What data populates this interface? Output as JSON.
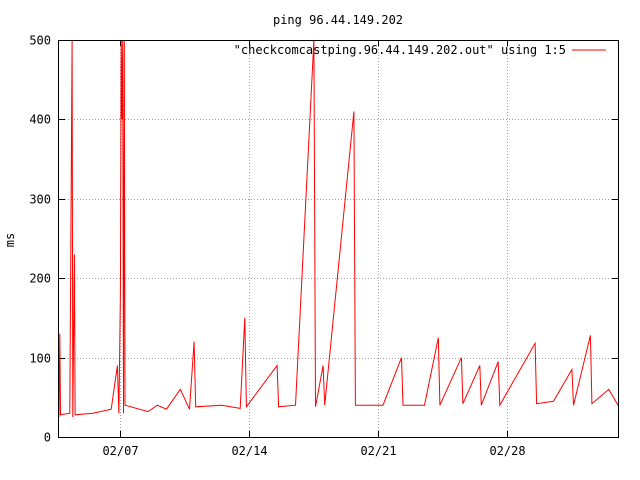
{
  "chart_data": {
    "type": "line",
    "title": "ping 96.44.149.202",
    "xlabel": "",
    "ylabel": "ms",
    "ylim": [
      0,
      500
    ],
    "xlim": [
      "2015-02-03T16:00",
      "2015-03-06"
    ],
    "x_format": "%m/%d",
    "yticks": [
      0,
      100,
      200,
      300,
      400,
      500
    ],
    "xticks": [
      {
        "value": "2015-02-07",
        "label": "02/07"
      },
      {
        "value": "2015-02-14",
        "label": "02/14"
      },
      {
        "value": "2015-02-21",
        "label": "02/21"
      },
      {
        "value": "2015-02-28",
        "label": "02/28"
      }
    ],
    "grid": true,
    "legend": {
      "position": "top-right"
    },
    "series": [
      {
        "name": "\"checkcomcastping.96.44.149.202.out\" using 1:5",
        "color": "#ff0000",
        "points": [
          [
            "2015-02-03T16:00",
            25
          ],
          [
            "2015-02-03T17:00",
            130
          ],
          [
            "2015-02-03T18:00",
            28
          ],
          [
            "2015-02-04T06:00",
            30
          ],
          [
            "2015-02-04T09:00",
            500
          ],
          [
            "2015-02-04T10:00",
            25
          ],
          [
            "2015-02-04T12:00",
            230
          ],
          [
            "2015-02-04T13:00",
            28
          ],
          [
            "2015-02-05T12:00",
            30
          ],
          [
            "2015-02-06T12:00",
            35
          ],
          [
            "2015-02-06T20:00",
            90
          ],
          [
            "2015-02-06T22:00",
            30
          ],
          [
            "2015-02-07T00:00",
            180
          ],
          [
            "2015-02-07T01:00",
            500
          ],
          [
            "2015-02-07T02:00",
            400
          ],
          [
            "2015-02-07T03:00",
            500
          ],
          [
            "2015-02-07T04:00",
            30
          ],
          [
            "2015-02-07T05:00",
            500
          ],
          [
            "2015-02-07T06:00",
            40
          ],
          [
            "2015-02-08T12:00",
            32
          ],
          [
            "2015-02-09T00:00",
            40
          ],
          [
            "2015-02-09T12:00",
            35
          ],
          [
            "2015-02-10T06:00",
            60
          ],
          [
            "2015-02-10T18:00",
            35
          ],
          [
            "2015-02-11T00:00",
            120
          ],
          [
            "2015-02-11T02:00",
            38
          ],
          [
            "2015-02-12T12:00",
            40
          ],
          [
            "2015-02-13T12:00",
            36
          ],
          [
            "2015-02-13T18:00",
            150
          ],
          [
            "2015-02-13T20:00",
            38
          ],
          [
            "2015-02-15T12:00",
            90
          ],
          [
            "2015-02-15T14:00",
            38
          ],
          [
            "2015-02-16T12:00",
            40
          ],
          [
            "2015-02-17T12:00",
            500
          ],
          [
            "2015-02-17T14:00",
            38
          ],
          [
            "2015-02-18T00:00",
            90
          ],
          [
            "2015-02-18T02:00",
            40
          ],
          [
            "2015-02-19T16:00",
            410
          ],
          [
            "2015-02-19T18:00",
            40
          ],
          [
            "2015-02-21T06:00",
            40
          ],
          [
            "2015-02-22T06:00",
            100
          ],
          [
            "2015-02-22T08:00",
            40
          ],
          [
            "2015-02-23T12:00",
            40
          ],
          [
            "2015-02-24T06:00",
            125
          ],
          [
            "2015-02-24T08:00",
            40
          ],
          [
            "2015-02-25T12:00",
            100
          ],
          [
            "2015-02-25T14:00",
            42
          ],
          [
            "2015-02-26T12:00",
            90
          ],
          [
            "2015-02-26T14:00",
            40
          ],
          [
            "2015-02-27T12:00",
            95
          ],
          [
            "2015-02-27T14:00",
            40
          ],
          [
            "2015-03-01T12:00",
            118
          ],
          [
            "2015-03-01T14:00",
            42
          ],
          [
            "2015-03-02T12:00",
            45
          ],
          [
            "2015-03-03T12:00",
            85
          ],
          [
            "2015-03-03T14:00",
            40
          ],
          [
            "2015-03-04T12:00",
            128
          ],
          [
            "2015-03-04T14:00",
            42
          ],
          [
            "2015-03-05T12:00",
            60
          ],
          [
            "2015-03-06T00:00",
            40
          ]
        ]
      }
    ]
  }
}
